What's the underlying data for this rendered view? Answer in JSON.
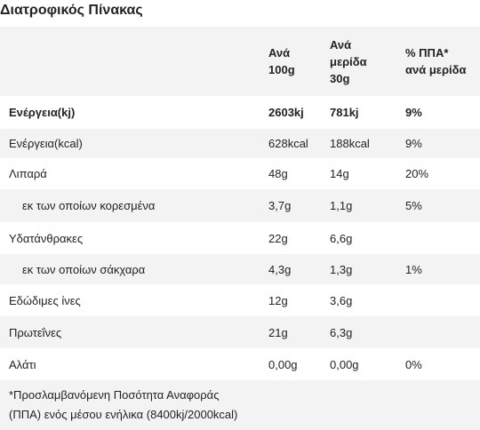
{
  "title": "Διατροφικός Πίνακας",
  "table": {
    "headers": [
      [],
      [
        "Ανά",
        "100g"
      ],
      [
        "Ανά",
        "μερίδα",
        "30g"
      ],
      [
        "% ΠΠΑ*",
        "ανά μερίδα"
      ]
    ],
    "rows": [
      [
        "Ενέργεια(kj)",
        "2603kj",
        "781kj",
        "9%"
      ],
      [
        "Ενέργεια(kcal)",
        "628kcal",
        "188kcal",
        "9%"
      ],
      [
        "Λιπαρά",
        "48g",
        "14g",
        "20%"
      ],
      [
        "εκ των οποίων κορεσμένα",
        "3,7g",
        "1,1g",
        "5%"
      ],
      [
        "Υδατάνθρακες",
        "22g",
        "6,6g",
        null
      ],
      [
        "εκ των οποίων σάκχαρα",
        "4,3g",
        "1,3g",
        "1%"
      ],
      [
        "Εδώδιμες ίνες",
        "12g",
        "3,6g",
        null
      ],
      [
        "Πρωτεΐνες",
        "21g",
        "6,3g",
        null
      ],
      [
        "Αλάτι",
        "0,00g",
        "0,00g",
        "0%"
      ]
    ],
    "footnote": [
      "*Προσλαμβανόμενη Ποσότητα Αναφοράς",
      "(ΠΠΑ) ενός μέσου ενήλικα (8400kj/2000kcal)"
    ]
  }
}
